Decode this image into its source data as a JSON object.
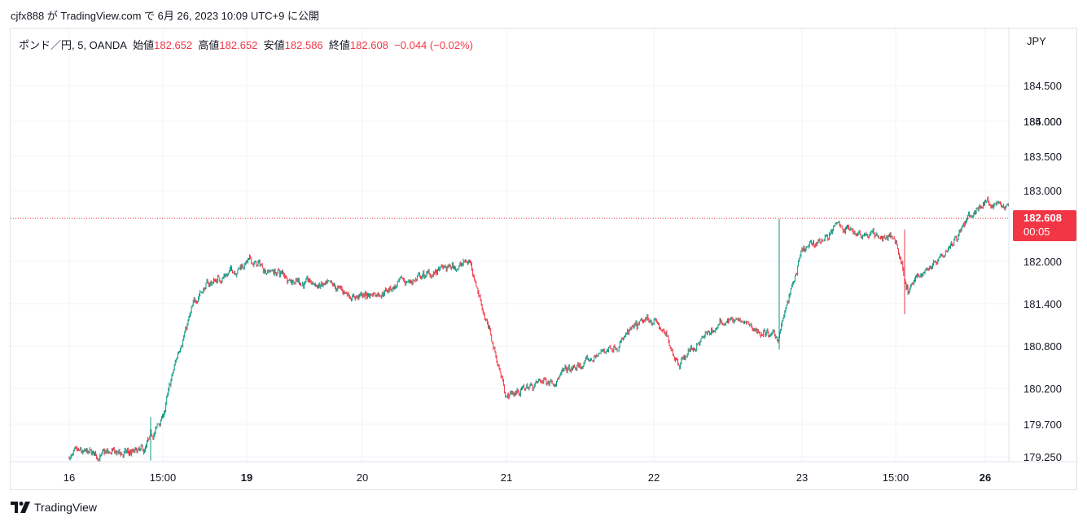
{
  "header": {
    "text": "cjfx888 が TradingView.com で 6月 26, 2023 10:09 UTC+9 に公開"
  },
  "legend": {
    "symbol": "ポンド／円, 5, OANDA",
    "open_label": "始値",
    "open": "182.652",
    "high_label": "高値",
    "high": "182.652",
    "low_label": "安値",
    "low": "182.586",
    "close_label": "終値",
    "close": "182.608",
    "change": "−0.044 (−0.02%)"
  },
  "price_scale": {
    "currency": "JPY",
    "last_price": "182.608",
    "countdown": "00:05"
  },
  "footer": {
    "brand": "TradingView"
  },
  "colors": {
    "up": "#089981",
    "down": "#f23645",
    "grid": "#f0f3fa",
    "axis_text": "#131722"
  },
  "chart_data": {
    "type": "candlestick",
    "symbol": "ポンド／円, 5, OANDA",
    "y_ticks": [
      "184.500",
      "184.000",
      "183.500",
      "183.000",
      "182.000",
      "181.400",
      "180.800",
      "180.200",
      "179.700",
      "179.250"
    ],
    "x_ticks": [
      {
        "label": "16",
        "bold": false
      },
      {
        "label": "15:00",
        "bold": false
      },
      {
        "label": "19",
        "bold": true
      },
      {
        "label": "20",
        "bold": false
      },
      {
        "label": "21",
        "bold": false
      },
      {
        "label": "22",
        "bold": false
      },
      {
        "label": "23",
        "bold": false
      },
      {
        "label": "15:00",
        "bold": false
      },
      {
        "label": "26",
        "bold": true
      }
    ],
    "last_price": 182.608,
    "approx_close_path": [
      {
        "t": "16",
        "price": 179.25
      },
      {
        "t": "16 12:00",
        "price": 179.3
      },
      {
        "t": "16 15:00",
        "price": 179.8
      },
      {
        "t": "16 18:00",
        "price": 180.9
      },
      {
        "t": "16 21:00",
        "price": 181.6
      },
      {
        "t": "19",
        "price": 182.0
      },
      {
        "t": "19 12:00",
        "price": 181.7
      },
      {
        "t": "20",
        "price": 181.5
      },
      {
        "t": "20 18:00",
        "price": 182.0
      },
      {
        "t": "21",
        "price": 180.1
      },
      {
        "t": "21 12:00",
        "price": 180.5
      },
      {
        "t": "22",
        "price": 181.2
      },
      {
        "t": "22 04:00",
        "price": 180.6
      },
      {
        "t": "22 12:00",
        "price": 181.2
      },
      {
        "t": "22 20:00",
        "price": 180.9
      },
      {
        "t": "23",
        "price": 182.1
      },
      {
        "t": "23 06:00",
        "price": 182.5
      },
      {
        "t": "23 15:00",
        "price": 182.3
      },
      {
        "t": "23 17:00",
        "price": 181.6
      },
      {
        "t": "26",
        "price": 182.85
      },
      {
        "t": "26 10:09",
        "price": 182.608
      }
    ]
  }
}
